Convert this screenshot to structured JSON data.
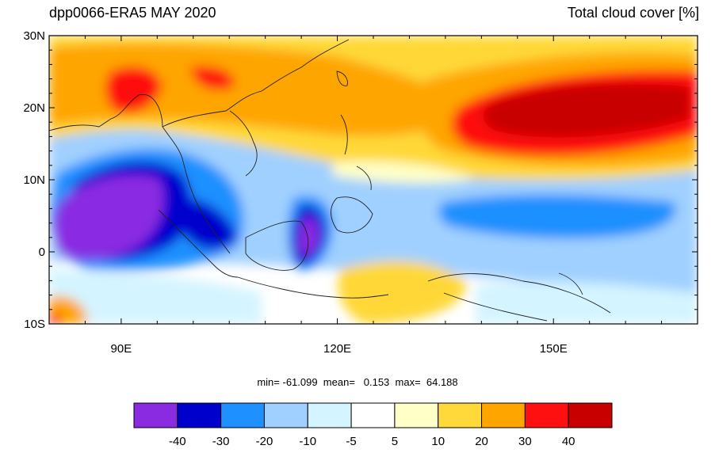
{
  "header": {
    "left_title": "dpp0066-ERA5 MAY 2020",
    "right_title": "Total cloud cover [%]"
  },
  "map": {
    "lon_range": [
      80,
      170
    ],
    "lat_range": [
      -10,
      30
    ],
    "lat_ticks": [
      {
        "value": 30,
        "label": "30N"
      },
      {
        "value": 20,
        "label": "20N"
      },
      {
        "value": 10,
        "label": "10N"
      },
      {
        "value": 0,
        "label": "0"
      },
      {
        "value": -10,
        "label": "10S"
      }
    ],
    "lon_ticks": [
      {
        "value": 90,
        "label": "90E"
      },
      {
        "value": 120,
        "label": "120E"
      },
      {
        "value": 150,
        "label": "150E"
      }
    ]
  },
  "stats": {
    "text": "min= -61.099  mean=   0.153  max=  64.188"
  },
  "colorbar": {
    "colors": [
      "#8a2be2",
      "#0000cd",
      "#1e90ff",
      "#a0d0ff",
      "#d4f4ff",
      "#ffffff",
      "#ffffc8",
      "#ffd839",
      "#ffa500",
      "#ff1010",
      "#c80000"
    ],
    "labels": [
      "-40",
      "-30",
      "-20",
      "-10",
      "-5",
      "5",
      "10",
      "20",
      "30",
      "40"
    ]
  }
}
